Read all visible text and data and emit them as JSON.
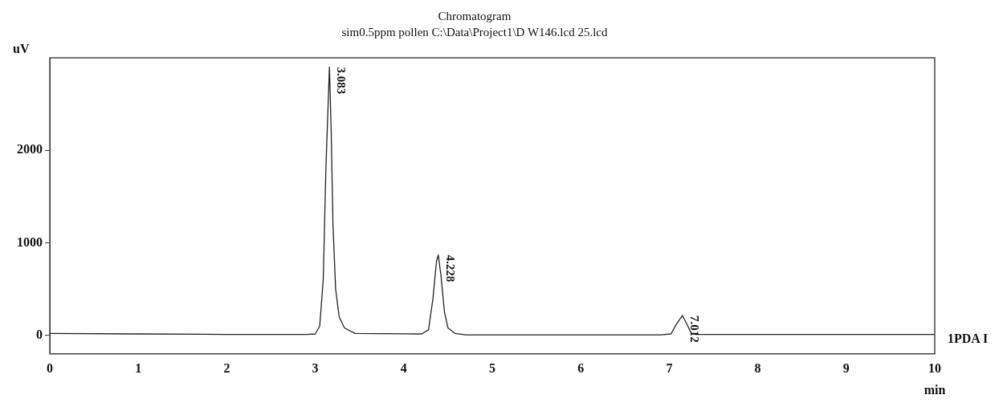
{
  "chart_data": {
    "type": "line",
    "title": "Chromatogram",
    "subtitle": "sim0.5ppm pollen C:\\Data\\Project1\\D W146.lcd 25.lcd",
    "xlabel": "min",
    "ylabel": "uV",
    "xlim": [
      0,
      10
    ],
    "xticks": [
      0,
      1,
      2,
      3,
      4,
      5,
      6,
      7,
      8,
      9,
      10
    ],
    "ylim": [
      -200,
      3000
    ],
    "yticks": [
      0,
      1000,
      2000
    ],
    "series": [
      {
        "name": "1PDA I",
        "color": "#222222",
        "x": [
          0,
          1,
          2,
          2.9,
          3.0,
          3.05,
          3.09,
          3.12,
          3.16,
          3.18,
          3.2,
          3.23,
          3.27,
          3.33,
          3.45,
          4.2,
          4.28,
          4.33,
          4.37,
          4.39,
          4.42,
          4.46,
          4.5,
          4.58,
          4.7,
          6.9,
          7.02,
          7.08,
          7.15,
          7.2,
          7.25,
          7.3,
          10
        ],
        "values": [
          20,
          15,
          10,
          10,
          15,
          100,
          600,
          1800,
          2900,
          2200,
          1200,
          500,
          200,
          80,
          20,
          15,
          60,
          400,
          800,
          870,
          650,
          250,
          80,
          20,
          5,
          5,
          15,
          120,
          215,
          120,
          20,
          10,
          10
        ]
      }
    ],
    "annotations": [
      {
        "text": "3.083",
        "x": 3.16,
        "y": 2900
      },
      {
        "text": "4.228",
        "x": 4.39,
        "y": 870
      },
      {
        "text": "7.012",
        "x": 7.15,
        "y": 215
      }
    ]
  }
}
